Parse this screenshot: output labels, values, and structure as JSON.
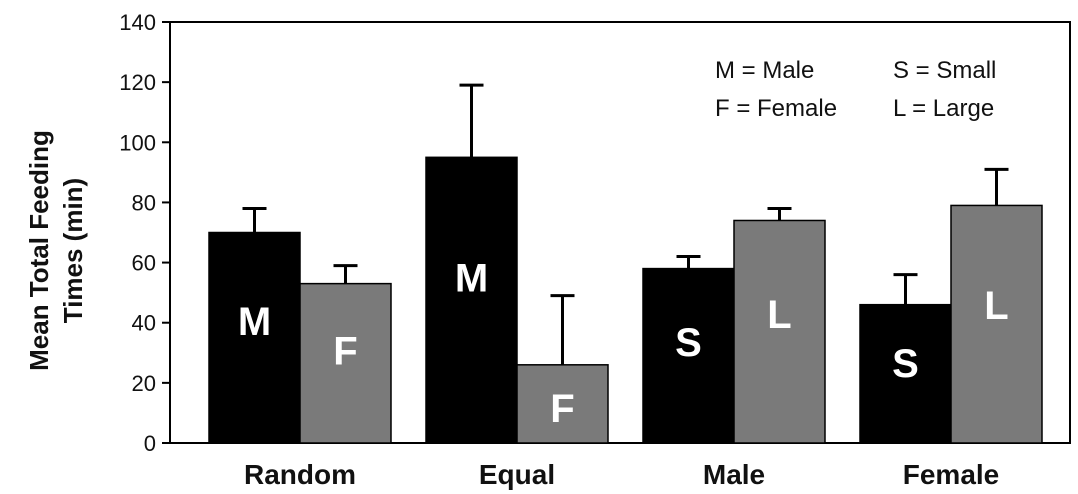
{
  "chart_data": {
    "type": "bar",
    "categories": [
      "Random",
      "Equal",
      "Male",
      "Female"
    ],
    "ylabel_lines": [
      "Mean Total Feeding",
      "Times (min)"
    ],
    "ylim": [
      0,
      140
    ],
    "yticks": [
      0,
      20,
      40,
      60,
      80,
      100,
      120,
      140
    ],
    "grid": false,
    "legend_position": "top-right",
    "legend": [
      {
        "text": "M = Male"
      },
      {
        "text": "S = Small"
      },
      {
        "text": "F = Female"
      },
      {
        "text": "L = Large"
      }
    ],
    "series": [
      {
        "color": "#000000",
        "values": [
          70,
          95,
          58,
          46
        ],
        "errors": [
          8,
          24,
          4,
          10
        ],
        "labels": [
          "M",
          "M",
          "S",
          "S"
        ]
      },
      {
        "color": "#7a7a7a",
        "values": [
          53,
          26,
          74,
          79
        ],
        "errors": [
          6,
          23,
          4,
          12
        ],
        "labels": [
          "F",
          "F",
          "L",
          "L"
        ]
      }
    ]
  }
}
